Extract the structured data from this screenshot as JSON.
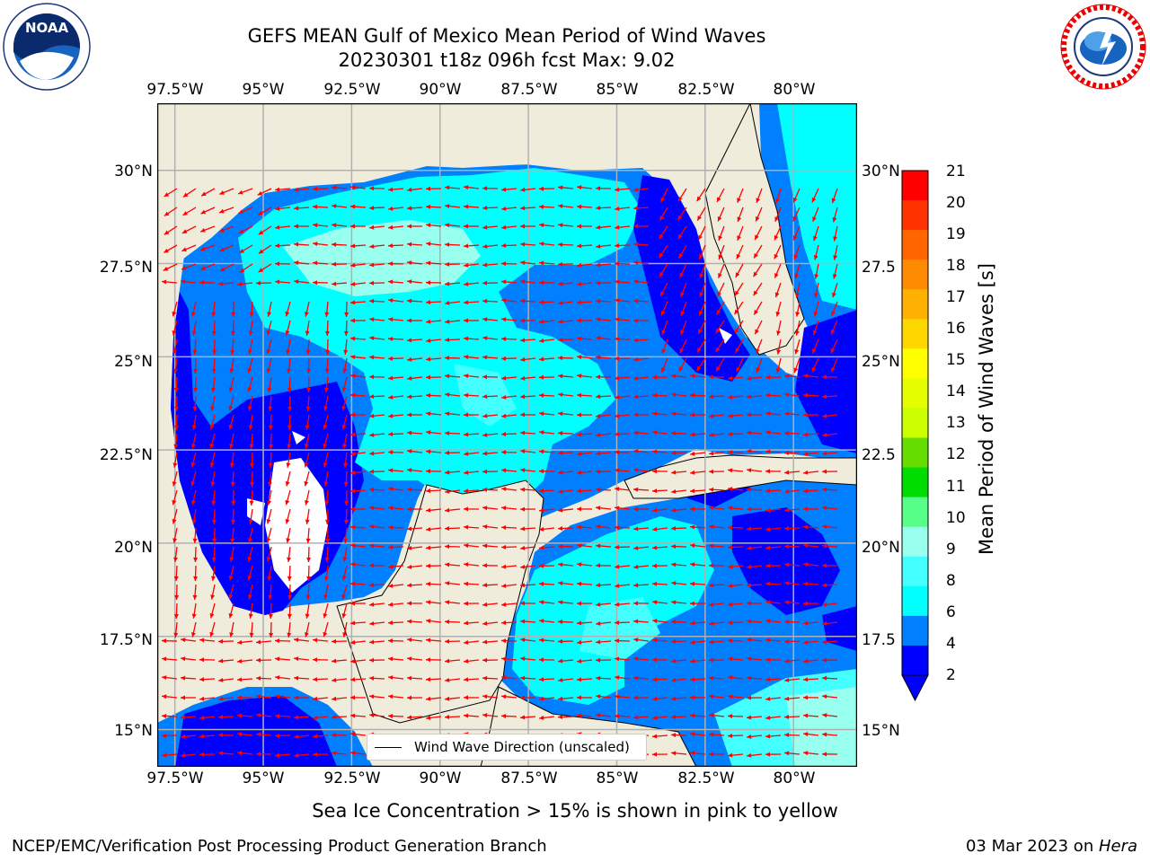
{
  "title": {
    "line1": "GEFS MEAN Gulf of Mexico Mean Period of Wind Waves",
    "line2": "20230301 t18z 096h fcst   Max: 9.02"
  },
  "map": {
    "lon_labels": [
      "97.5°W",
      "95°W",
      "92.5°W",
      "90°W",
      "87.5°W",
      "85°W",
      "82.5°W",
      "80°W"
    ],
    "lat_labels_left": [
      "30°N",
      "27.5°N",
      "25°N",
      "22.5°N",
      "20°N",
      "17.5°N",
      "15°N"
    ],
    "lat_labels_right": [
      "30°N",
      "27.5",
      "25°N",
      "22.5",
      "20°N",
      "17.5",
      "15°N"
    ],
    "extent": {
      "lon_min": -98,
      "lon_max": -78.2,
      "lat_min": 14,
      "lat_max": 31.8
    },
    "colors": {
      "land": "#efecdc",
      "ocean_default": "#00ffff",
      "grid": "#b0b0b0",
      "arrow": "#ff0000"
    },
    "legend_label": "Wind Wave Direction (unscaled)"
  },
  "colorbar": {
    "label": "Mean Period of Wind Waves [s]",
    "ticks": [
      "21",
      "20",
      "19",
      "18",
      "17",
      "16",
      "15",
      "14",
      "13",
      "12",
      "11",
      "10",
      "9",
      "8",
      "6",
      "4",
      "2"
    ],
    "colors": [
      "#ff0000",
      "#ff3300",
      "#ff6600",
      "#ff8c00",
      "#ffb000",
      "#ffd700",
      "#ffff00",
      "#e6ff00",
      "#ccff00",
      "#66dd00",
      "#00dd00",
      "#55ff88",
      "#99ffee",
      "#44ffff",
      "#00ffff",
      "#0080ff",
      "#0000ff"
    ]
  },
  "note": "Sea Ice Concentration > 15% is shown in pink to yellow",
  "footer": {
    "left": "NCEP/EMC/Verification Post Processing Product Generation Branch",
    "right_date": "03 Mar 2023 on ",
    "right_host": "Hera"
  },
  "logos": {
    "noaa": "NOAA",
    "noaa_ring": "NATIONAL OCEANIC AND ATMOSPHERIC ADMINISTRATION · U.S. DEPARTMENT OF COMMERCE",
    "nws_ring": "NATIONAL WEATHER SERVICE"
  }
}
